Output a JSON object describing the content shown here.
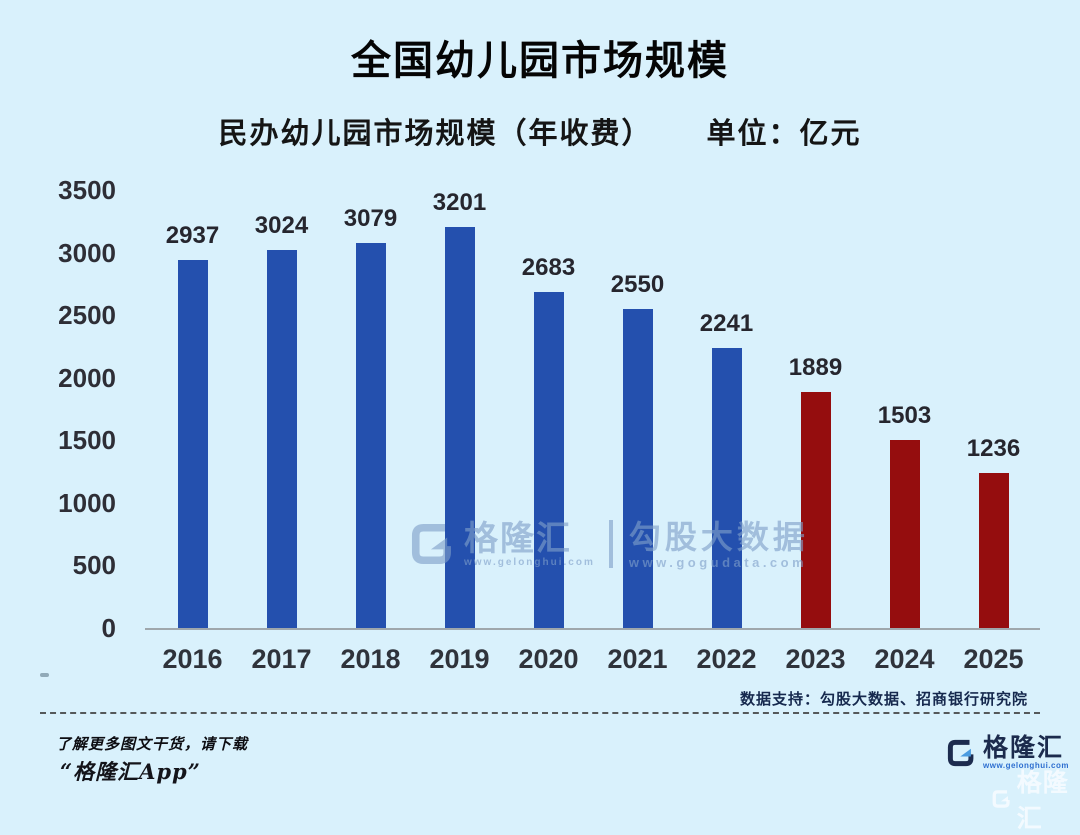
{
  "page": {
    "background": "#d9f1fc"
  },
  "title": "全国幼儿园市场规模",
  "subtitle": {
    "left": "民办幼儿园市场规模（年收费）",
    "right": "单位：亿元"
  },
  "chart_data": {
    "type": "bar",
    "title": "民办幼儿园市场规模（年收费）",
    "unit_label": "单位：亿元",
    "categories": [
      "2016",
      "2017",
      "2018",
      "2019",
      "2020",
      "2021",
      "2022",
      "2023",
      "2024",
      "2025"
    ],
    "values": [
      2937,
      3024,
      3079,
      3201,
      2683,
      2550,
      2241,
      1889,
      1503,
      1236
    ],
    "colors": [
      "#2450ae",
      "#2450ae",
      "#2450ae",
      "#2450ae",
      "#2450ae",
      "#2450ae",
      "#2450ae",
      "#950d0e",
      "#950d0e",
      "#950d0e"
    ],
    "xlabel": "",
    "ylabel": "",
    "ylim": [
      0,
      3500
    ],
    "yticks": [
      3500,
      3000,
      2500,
      2000,
      1500,
      1000,
      500,
      0
    ],
    "grid": false,
    "legend": null,
    "value_labels_shown": true
  },
  "watermark_center": {
    "brand": "格隆汇",
    "brand_url": "www.gelonghui.com",
    "partner": "勾股大数据",
    "partner_url": "www.gogudata.com"
  },
  "data_support": "数据支持：勾股大数据、招商银行研究院",
  "footer": {
    "line1": "了解更多图文干货，请下载",
    "line2": "“格隆汇App”",
    "logo_text": "格隆汇",
    "logo_url": "www.gelonghui.com",
    "corner_watermark_text": "格隆汇"
  }
}
